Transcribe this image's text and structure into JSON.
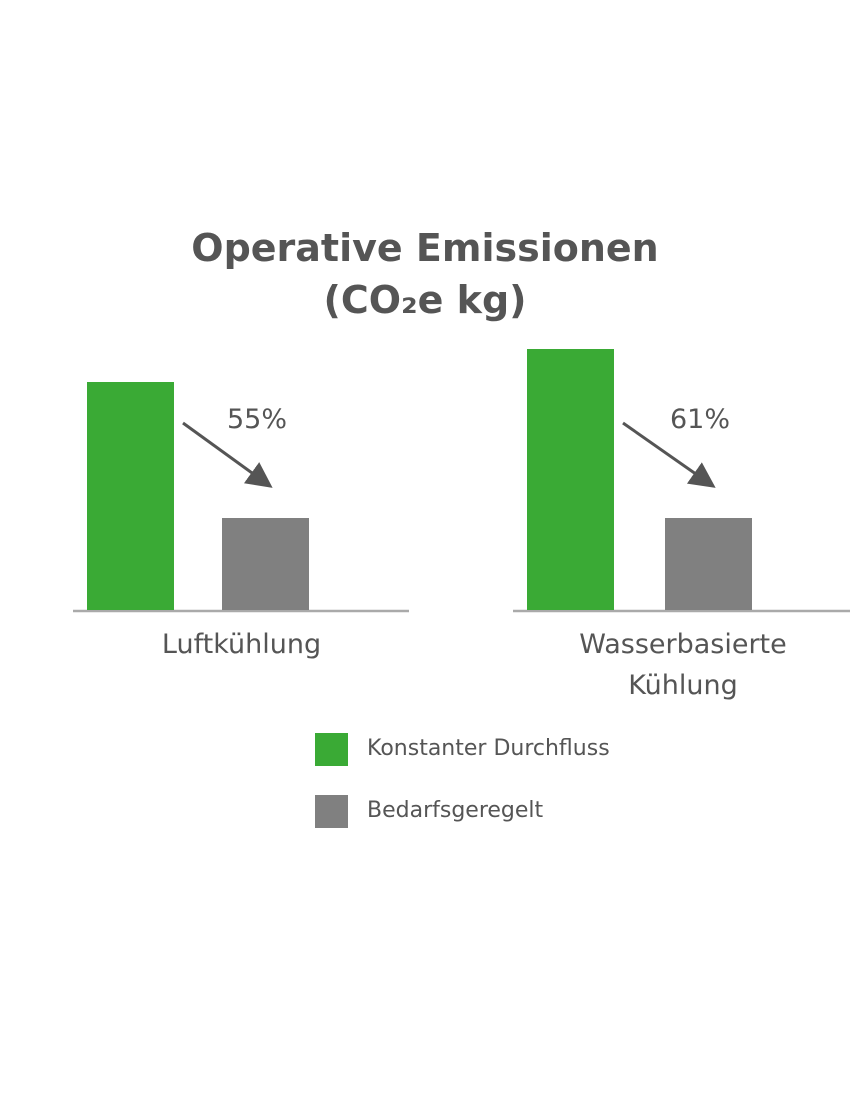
{
  "chart_data": {
    "type": "bar",
    "title": "Operative Emissionen (CO₂e kg)",
    "categories": [
      "Luftkühlung",
      "Wasserbasierte Kühlung"
    ],
    "series": [
      {
        "name": "Konstanter Durchfluss",
        "color": "#3aaa35",
        "values": [
          228,
          261
        ]
      },
      {
        "name": "Bedarfsgeregelt",
        "color": "#808080",
        "values": [
          92,
          92
        ]
      }
    ],
    "reduction": {
      "values": [
        55,
        61
      ],
      "value_labels": [
        "55%",
        "61%"
      ]
    },
    "ylim": [
      0,
      300
    ],
    "grid": false
  }
}
